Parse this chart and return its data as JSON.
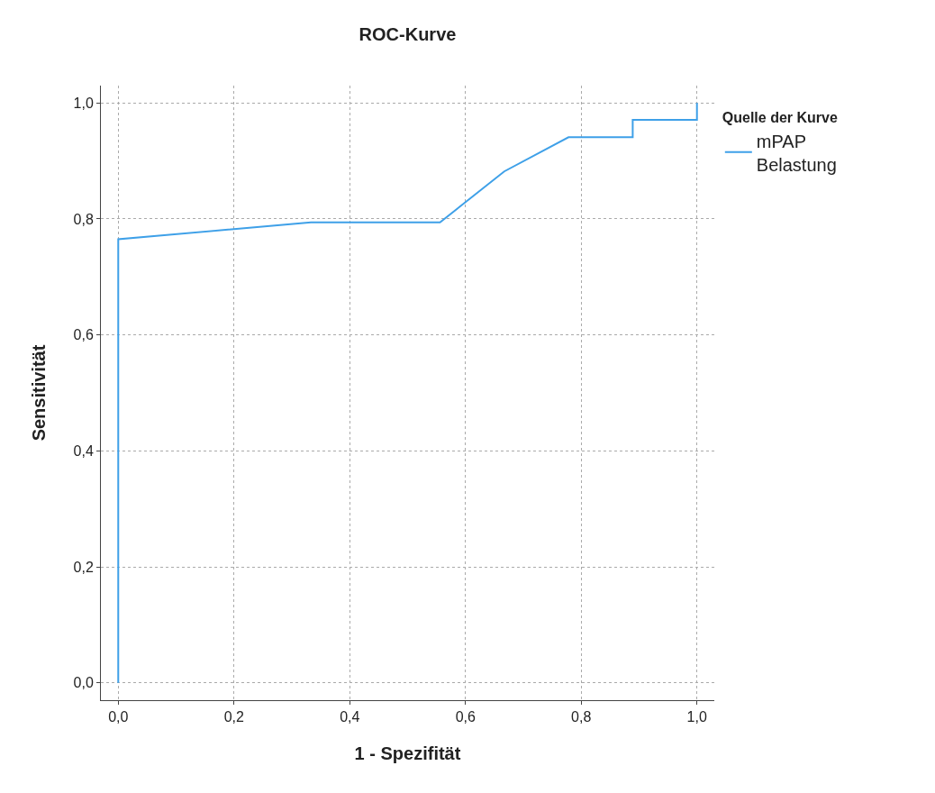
{
  "chart_data": {
    "type": "line",
    "title": "ROC-Kurve",
    "xlabel": "1 - Spezifität",
    "ylabel": "Sensitivität",
    "legend_title": "Quelle der Kurve",
    "series": [
      {
        "name": "mPAP Belastung",
        "color": "#3ea0e8",
        "x": [
          0,
          0,
          0.333,
          0.556,
          0.667,
          0.778,
          0.889,
          0.889,
          1.0,
          1.0
        ],
        "values": [
          0,
          0.765,
          0.794,
          0.794,
          0.882,
          0.941,
          0.941,
          0.971,
          0.971,
          1.0
        ]
      }
    ],
    "xlim": [
      -0.03,
      1.03
    ],
    "ylim": [
      -0.03,
      1.03
    ],
    "xticks": [
      {
        "value": 0,
        "label": "0,0"
      },
      {
        "value": 0.2,
        "label": "0,2"
      },
      {
        "value": 0.4,
        "label": "0,4"
      },
      {
        "value": 0.6,
        "label": "0,6"
      },
      {
        "value": 0.8,
        "label": "0,8"
      },
      {
        "value": 1.0,
        "label": "1,0"
      }
    ],
    "yticks": [
      {
        "value": 0,
        "label": "0,0"
      },
      {
        "value": 0.2,
        "label": "0,2"
      },
      {
        "value": 0.4,
        "label": "0,4"
      },
      {
        "value": 0.6,
        "label": "0,6"
      },
      {
        "value": 0.8,
        "label": "0,8"
      },
      {
        "value": 1.0,
        "label": "1,0"
      }
    ],
    "grid": true,
    "legend": "top right",
    "marker": "none",
    "line_style": "solid"
  }
}
